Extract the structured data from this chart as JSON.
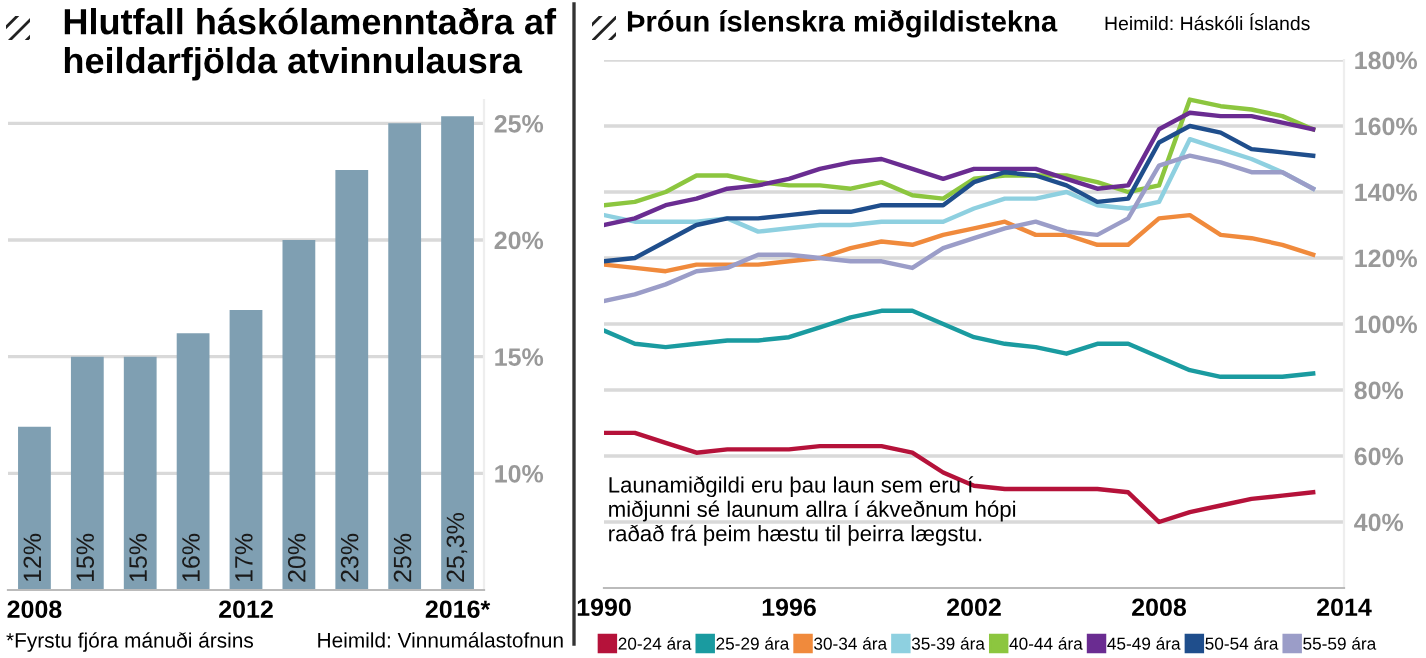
{
  "chart_data": [
    {
      "type": "bar",
      "title": "Hlutfall háskólamenntaðra af heildarfjölda atvinnulausra",
      "categories": [
        "2008",
        null,
        null,
        null,
        "2012",
        null,
        null,
        null,
        "2016*"
      ],
      "values": [
        12,
        15,
        15,
        16,
        17,
        20,
        23,
        25,
        25.3
      ],
      "value_labels": [
        "12%",
        "15%",
        "15%",
        "16%",
        "17%",
        "20%",
        "23%",
        "25%",
        "25,3%"
      ],
      "color": "#7f9fb2",
      "ylim": [
        5,
        26
      ],
      "yticks": [
        {
          "value": 10,
          "label": "10%"
        },
        {
          "value": 15,
          "label": "15%"
        },
        {
          "value": 20,
          "label": "20%"
        },
        {
          "value": 25,
          "label": "25%"
        }
      ],
      "grid": "y",
      "annotations": [
        "*Fyrstu fjóra mánuði ársins",
        "Heimild: Vinnumálastofnun"
      ]
    },
    {
      "type": "line",
      "title": "Þróun íslenskra miðgildistekna",
      "annotations": [
        "Heimild: Háskóli Íslands",
        "Launamiðgildi eru þau laun sem eru í\nmiðjunni sé launum allra í ákveðnum hópi\nraðað frá þeim hæstu til þeirra lægstu."
      ],
      "x": [
        1990,
        1991,
        1992,
        1993,
        1994,
        1995,
        1996,
        1997,
        1998,
        1999,
        2000,
        2001,
        2002,
        2003,
        2004,
        2005,
        2006,
        2007,
        2008,
        2009,
        2010,
        2011,
        2012,
        2013
      ],
      "series": [
        {
          "name": "20-24 ára",
          "color": "#b5123a",
          "values": [
            67,
            67,
            64,
            61,
            62,
            62,
            62,
            63,
            63,
            63,
            61,
            55,
            51,
            50,
            50,
            50,
            50,
            49,
            40,
            43,
            45,
            47,
            48,
            49
          ]
        },
        {
          "name": "25-29 ára",
          "color": "#1a9ba0",
          "values": [
            98,
            94,
            93,
            94,
            95,
            95,
            96,
            99,
            102,
            104,
            104,
            100,
            96,
            94,
            93,
            91,
            94,
            94,
            90,
            86,
            84,
            84,
            84,
            85
          ]
        },
        {
          "name": "30-34 ára",
          "color": "#f08a3c",
          "values": [
            118,
            117,
            116,
            118,
            118,
            118,
            119,
            120,
            123,
            125,
            124,
            127,
            129,
            131,
            127,
            127,
            124,
            124,
            132,
            133,
            127,
            126,
            124,
            121
          ]
        },
        {
          "name": "35-39 ára",
          "color": "#8ed0e0",
          "values": [
            133,
            131,
            131,
            131,
            132,
            128,
            129,
            130,
            130,
            131,
            131,
            131,
            135,
            138,
            138,
            140,
            136,
            135,
            137,
            156,
            153,
            150,
            146,
            141
          ]
        },
        {
          "name": "40-44 ára",
          "color": "#8cc63f",
          "values": [
            136,
            137,
            140,
            145,
            145,
            143,
            142,
            142,
            141,
            143,
            139,
            138,
            144,
            145,
            145,
            145,
            143,
            140,
            142,
            168,
            166,
            165,
            163,
            159
          ]
        },
        {
          "name": "45-49 ára",
          "color": "#6a2c91",
          "values": [
            130,
            132,
            136,
            138,
            141,
            142,
            144,
            147,
            149,
            150,
            147,
            144,
            147,
            147,
            147,
            144,
            141,
            142,
            159,
            164,
            163,
            163,
            161,
            159
          ]
        },
        {
          "name": "50-54 ára",
          "color": "#1f4e8c",
          "values": [
            119,
            120,
            125,
            130,
            132,
            132,
            133,
            134,
            134,
            136,
            136,
            136,
            143,
            146,
            145,
            142,
            137,
            138,
            155,
            160,
            158,
            153,
            152,
            151
          ]
        },
        {
          "name": "55-59 ára",
          "color": "#9b9dc8",
          "values": [
            107,
            109,
            112,
            116,
            117,
            121,
            121,
            120,
            119,
            119,
            117,
            123,
            126,
            129,
            131,
            128,
            127,
            132,
            148,
            151,
            149,
            146,
            146,
            141
          ]
        }
      ],
      "xlim": [
        1990,
        2014
      ],
      "xticks": [
        1990,
        1996,
        2002,
        2008,
        2014
      ],
      "ylim": [
        20,
        180
      ],
      "yticks": [
        {
          "value": 40,
          "label": "40%"
        },
        {
          "value": 60,
          "label": "60%"
        },
        {
          "value": 80,
          "label": "80%"
        },
        {
          "value": 100,
          "label": "100%"
        },
        {
          "value": 120,
          "label": "120%"
        },
        {
          "value": 140,
          "label": "140%"
        },
        {
          "value": 160,
          "label": "160%"
        },
        {
          "value": 180,
          "label": "180%"
        }
      ],
      "grid": "y",
      "legend": "bottom"
    }
  ]
}
